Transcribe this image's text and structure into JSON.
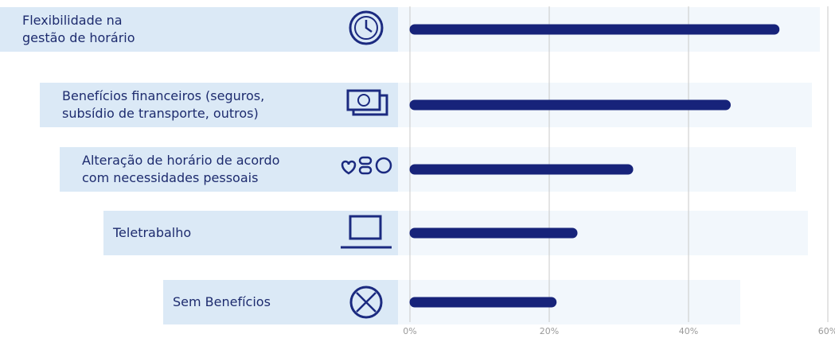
{
  "chart_data": {
    "type": "bar",
    "orientation": "horizontal",
    "categories": [
      "Flexibilidade na\ngestão de horário",
      "Benefícios financeiros (seguros,\nsubsídio de transporte, outros)",
      "Alteração de horário de acordo\ncom necessidades pessoais",
      "Teletrabalho",
      "Sem Benefícios"
    ],
    "values": [
      53,
      46,
      32,
      24,
      21
    ],
    "color": "#17237a",
    "xlim": [
      0,
      60
    ],
    "xticks": [
      {
        "value": 0,
        "label": "0%"
      },
      {
        "value": 20,
        "label": "20%"
      },
      {
        "value": 40,
        "label": "40%"
      },
      {
        "value": 60,
        "label": "60%"
      }
    ],
    "grid": true
  }
}
